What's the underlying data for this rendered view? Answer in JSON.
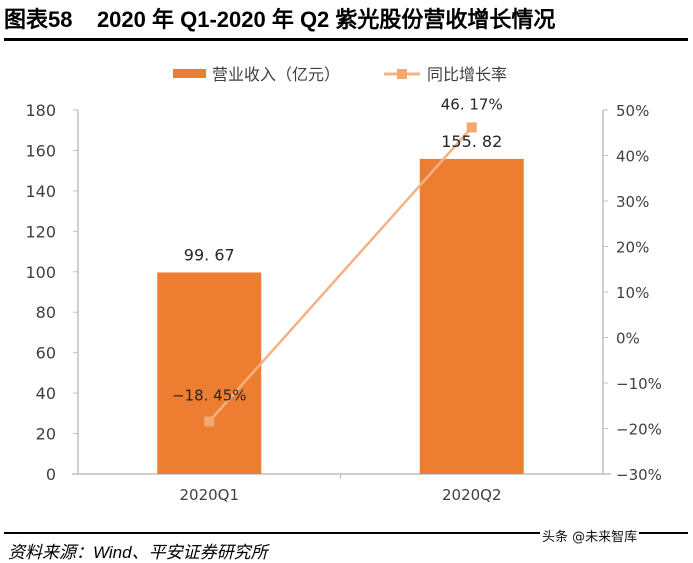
{
  "figure": {
    "label": "图表58",
    "title": "2020 年 Q1-2020 年 Q2 紫光股份营收增长情况",
    "source": "资料来源：Wind、平安证券研究所",
    "watermark": "头条 @未来智库"
  },
  "legend": {
    "bar_label": "营业收入（亿元）",
    "line_label": "同比增长率"
  },
  "colors": {
    "bar": "#ED7D31",
    "line": "#F4B183",
    "marker": "#F4A76F",
    "axis": "#BFBFBF",
    "text": "#404040"
  },
  "chart_data": {
    "type": "bar",
    "title": "2020 年 Q1-2020 年 Q2 紫光股份营收增长情况",
    "categories": [
      "2020Q1",
      "2020Q2"
    ],
    "series": [
      {
        "name": "营业收入（亿元）",
        "type": "bar",
        "axis": "left",
        "values": [
          99.67,
          155.82
        ],
        "labels": [
          "99. 67",
          "155. 82"
        ]
      },
      {
        "name": "同比增长率",
        "type": "line",
        "axis": "right",
        "values": [
          -18.45,
          46.17
        ],
        "labels": [
          "-18. 45%",
          "46. 17%"
        ],
        "unit": "%"
      }
    ],
    "xlabel": "",
    "ylabel": "",
    "y_left": {
      "ylim": [
        0,
        180
      ],
      "ticks": [
        "0",
        "20",
        "40",
        "60",
        "80",
        "100",
        "120",
        "140",
        "160",
        "180"
      ]
    },
    "y_right": {
      "ylim": [
        -30,
        50
      ],
      "ticks": [
        "-30%",
        "-20%",
        "-10%",
        "0%",
        "10%",
        "20%",
        "30%",
        "40%",
        "50%"
      ]
    },
    "grid": false,
    "legend_position": "top"
  }
}
